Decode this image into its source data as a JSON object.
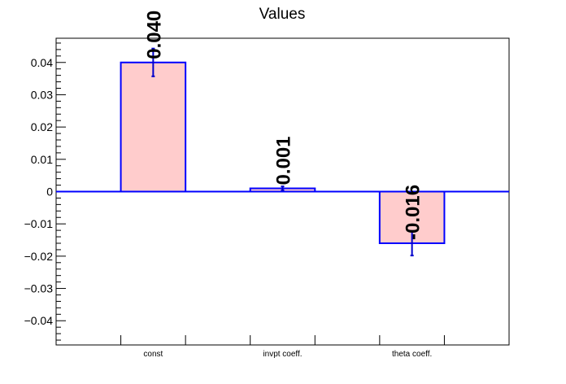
{
  "chart_data": {
    "type": "bar",
    "title": "Values",
    "categories": [
      "const",
      "invpt coeff.",
      "theta coeff."
    ],
    "values": [
      0.04,
      0.001,
      -0.016
    ],
    "errors": [
      0.0043,
      0.0006,
      0.0038
    ],
    "value_labels": [
      "0.040",
      "0.001",
      "-0.016"
    ],
    "xlabel": "",
    "ylabel": "",
    "ylim": [
      -0.0475,
      0.0475
    ],
    "yticks": [
      -0.04,
      -0.03,
      -0.02,
      -0.01,
      0,
      0.01,
      0.02,
      0.03,
      0.04
    ],
    "ytick_labels": [
      "−0.04",
      "−0.03",
      "−0.02",
      "−0.01",
      "0",
      "0.01",
      "0.02",
      "0.03",
      "0.04"
    ],
    "grid": false,
    "colors": {
      "bar_fill": "#ffcccc",
      "bar_edge": "#0000ff",
      "error": "#0000cc",
      "axis": "#000000"
    }
  }
}
